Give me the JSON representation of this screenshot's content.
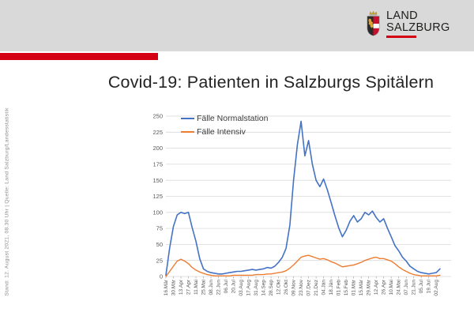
{
  "title": "Covid-19: Patienten in Salzburgs Spitälern",
  "header": {
    "background_color": "#d9d9d9",
    "accent_color": "#d40014",
    "logo": {
      "line1": "LAND",
      "line2": "SALZBURG",
      "crest_icon": "salzburg-coat-of-arms"
    }
  },
  "sidebar": {
    "source_text": "Stand: 12. August 2021, 08.30 Uhr | Quelle: Land Salzburg/Landesstatistik"
  },
  "chart_data": {
    "type": "line",
    "title": "Covid-19: Patienten in Salzburgs Spitälern",
    "xlabel": "",
    "ylabel": "",
    "ylim": [
      0,
      250
    ],
    "ytick_step": 25,
    "yticks": [
      0,
      25,
      50,
      75,
      100,
      125,
      150,
      175,
      200,
      225,
      250
    ],
    "grid": "horizontal",
    "legend_position": "top-left-inside",
    "x_tick_labels": [
      "16.Mär",
      "30.Mär",
      "13.Apr",
      "27.Apr",
      "11.Mai",
      "25.Mai",
      "08.Jun",
      "22.Jun",
      "06.Jul",
      "20.Jul",
      "03.Aug",
      "17.Aug",
      "31.Aug",
      "14.Sep",
      "28.Sep",
      "12.Okt",
      "26.Okt",
      "09.Nov",
      "23.Nov",
      "07.Dez",
      "21.Dez",
      "04.Jän",
      "18.Jän",
      "01.Feb",
      "15.Feb",
      "01.Mär",
      "15.Mär",
      "29.Mär",
      "12.Apr",
      "26.Apr",
      "10.Mai",
      "24.Mai",
      "07.Jun",
      "21.Jun",
      "05.Jul",
      "19.Jul",
      "02.Aug"
    ],
    "sampling": "series values estimated at 7-day intervals starting 16.Mär 2020; x tick labels fall on every second sample",
    "series": [
      {
        "name": "Fälle Normalstation",
        "color": "#4472c4",
        "values": [
          2,
          45,
          78,
          96,
          100,
          98,
          100,
          76,
          55,
          28,
          12,
          8,
          6,
          5,
          4,
          4,
          5,
          6,
          7,
          8,
          8,
          9,
          10,
          11,
          10,
          11,
          12,
          14,
          13,
          16,
          22,
          30,
          44,
          80,
          150,
          205,
          242,
          188,
          212,
          175,
          150,
          140,
          152,
          135,
          115,
          95,
          76,
          62,
          72,
          86,
          95,
          85,
          90,
          100,
          96,
          102,
          92,
          85,
          90,
          75,
          62,
          48,
          40,
          30,
          24,
          16,
          12,
          8,
          6,
          5,
          4,
          5,
          6,
          12
        ]
      },
      {
        "name": "Fälle Intensiv",
        "color": "#ed7d31",
        "values": [
          0,
          8,
          16,
          24,
          27,
          24,
          20,
          14,
          10,
          7,
          5,
          3,
          2,
          1,
          1,
          1,
          1,
          1,
          2,
          2,
          2,
          2,
          2,
          2,
          3,
          3,
          3,
          4,
          4,
          5,
          6,
          7,
          9,
          13,
          18,
          24,
          30,
          32,
          33,
          31,
          29,
          27,
          28,
          26,
          23,
          21,
          18,
          15,
          16,
          17,
          18,
          20,
          22,
          25,
          27,
          29,
          30,
          28,
          28,
          26,
          24,
          20,
          15,
          11,
          8,
          5,
          3,
          2,
          1,
          1,
          1,
          1,
          1,
          2
        ]
      }
    ]
  }
}
